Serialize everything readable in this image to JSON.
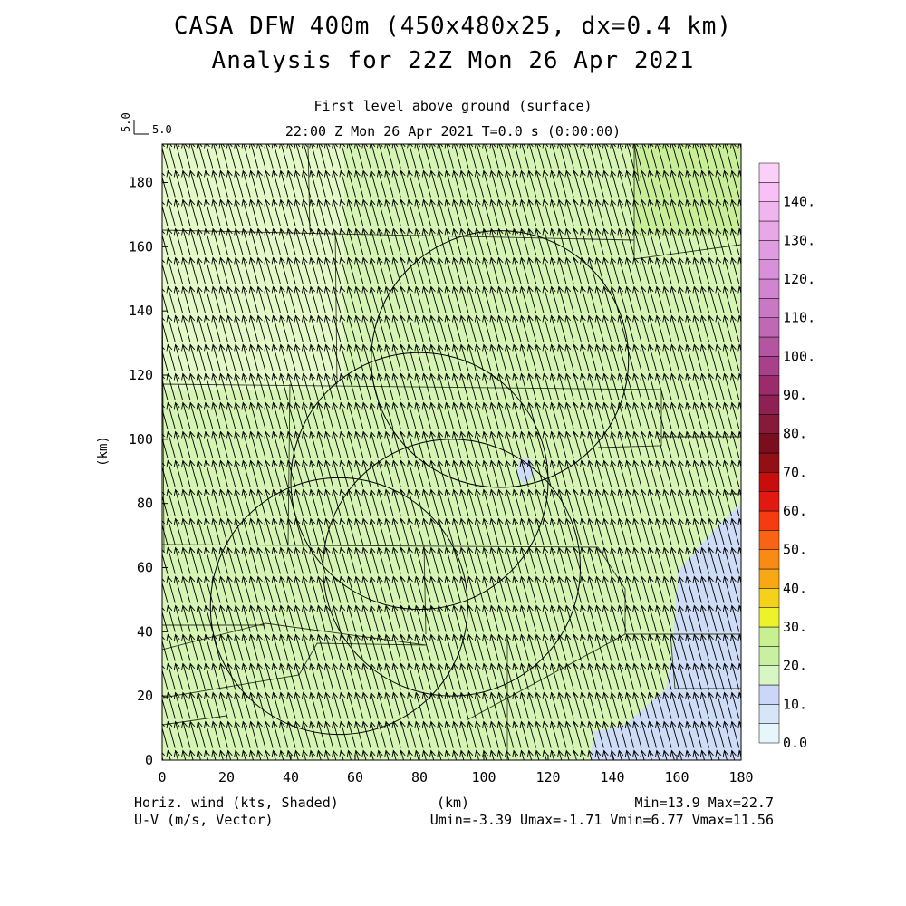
{
  "header": {
    "title_line1": "CASA DFW 400m (450x480x25, dx=0.4 km)",
    "title_line2": "Analysis for 22Z Mon 26 Apr 2021",
    "subtitle_line1": "First level above ground (surface)",
    "subtitle_line2": "22:00 Z Mon 26 Apr 2021    T=0.0 s (0:00:00)"
  },
  "vector_key": {
    "vertical_label": "5.0",
    "horizontal_label": "5.0"
  },
  "footer": {
    "left_line1": "Horiz. wind (kts, Shaded)",
    "left_line2": "U-V (m/s, Vector)",
    "center_unit": "(km)",
    "right_line1": "Min=13.9 Max=22.7",
    "right_line2": "Umin=-3.39 Umax=-1.71 Vmin=6.77 Vmax=11.56"
  },
  "colors": {
    "field_green": "#d6f5b4",
    "field_green_light": "#e4f9c8",
    "field_green_dark": "#c8ee98",
    "field_blue": "#cfdcf6"
  },
  "chart_data": {
    "type": "heatmap",
    "field": "Horizontal wind speed (kts, shaded) with U-V wind vectors (m/s)",
    "x_label": "(km)",
    "y_label": "(km)",
    "xlim": [
      0,
      180
    ],
    "ylim": [
      0,
      192
    ],
    "x_ticks": [
      0,
      20,
      40,
      60,
      80,
      100,
      120,
      140,
      160,
      180
    ],
    "y_ticks": [
      0,
      20,
      40,
      60,
      80,
      100,
      120,
      140,
      160,
      180
    ],
    "colorbar": {
      "levels": [
        0,
        5,
        10,
        15,
        20,
        25,
        30,
        35,
        40,
        45,
        50,
        55,
        60,
        65,
        70,
        75,
        80,
        85,
        90,
        95,
        100,
        105,
        110,
        115,
        120,
        125,
        130,
        135,
        140,
        145
      ],
      "colors": [
        "#e6f6fb",
        "#d6e6f8",
        "#ccd6f6",
        "#d8f5c4",
        "#c8f0a0",
        "#c8f090",
        "#eef22a",
        "#f5d21a",
        "#f8a814",
        "#f98a14",
        "#f86414",
        "#f43c10",
        "#e01a10",
        "#c80e0c",
        "#901016",
        "#7a0e1e",
        "#861a3a",
        "#8f2054",
        "#9a2c6c",
        "#a8418a",
        "#b455a2",
        "#bf68b4",
        "#c978c4",
        "#d184d0",
        "#d990da",
        "#e09ce0",
        "#e8a8e8",
        "#f0b4ee",
        "#f8c0f4",
        "#fbd0f8"
      ],
      "tick_labels": [
        "0.0",
        "10.",
        "20.",
        "30.",
        "40.",
        "50.",
        "60.",
        "70.",
        "80.",
        "90.",
        "100.",
        "110.",
        "120.",
        "130.",
        "140."
      ]
    },
    "field_min": 13.9,
    "field_max": 22.7,
    "u_range": [
      -3.39,
      -1.71
    ],
    "v_range": [
      6.77,
      11.56
    ],
    "vector_reference": 5.0,
    "radar_rings": [
      {
        "center": [
          105,
          125
        ],
        "radius": 40
      },
      {
        "center": [
          90,
          60
        ],
        "radius": 40
      },
      {
        "center": [
          80,
          87
        ],
        "radius": 40
      },
      {
        "center": [
          55,
          48
        ],
        "radius": 40
      }
    ]
  }
}
